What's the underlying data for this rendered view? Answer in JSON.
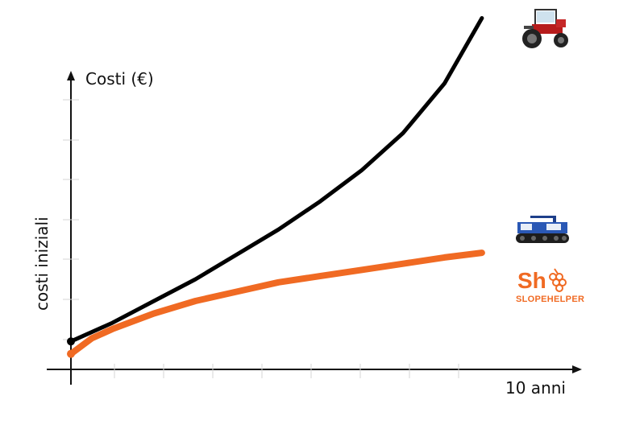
{
  "chart_data": {
    "type": "line",
    "y_title": "Costi (€)",
    "x_title": "10 anni",
    "y_annotation": "costi iniziali",
    "xlim": [
      0,
      10
    ],
    "ylim": [
      0,
      10
    ],
    "grid": false,
    "series": [
      {
        "icon": "tractor-icon",
        "color": "#000000",
        "x": [
          0,
          1,
          2,
          3,
          4,
          5,
          6,
          7,
          8,
          9,
          9.9
        ],
        "y": [
          0.9,
          1.5,
          2.2,
          2.9,
          3.7,
          4.5,
          5.4,
          6.4,
          7.6,
          9.2,
          11.3
        ]
      },
      {
        "icon": "tracked-vehicle-icon",
        "color": "#f06a23",
        "x": [
          0,
          0.5,
          1,
          2,
          3,
          4,
          5,
          6,
          7,
          8,
          9,
          9.9
        ],
        "y": [
          0.5,
          1.0,
          1.3,
          1.8,
          2.2,
          2.5,
          2.8,
          3.0,
          3.2,
          3.4,
          3.6,
          3.75
        ]
      }
    ]
  },
  "brand": {
    "logo_letters": "Sh",
    "name": "SLOPEHELPER",
    "color": "#f06a23"
  }
}
